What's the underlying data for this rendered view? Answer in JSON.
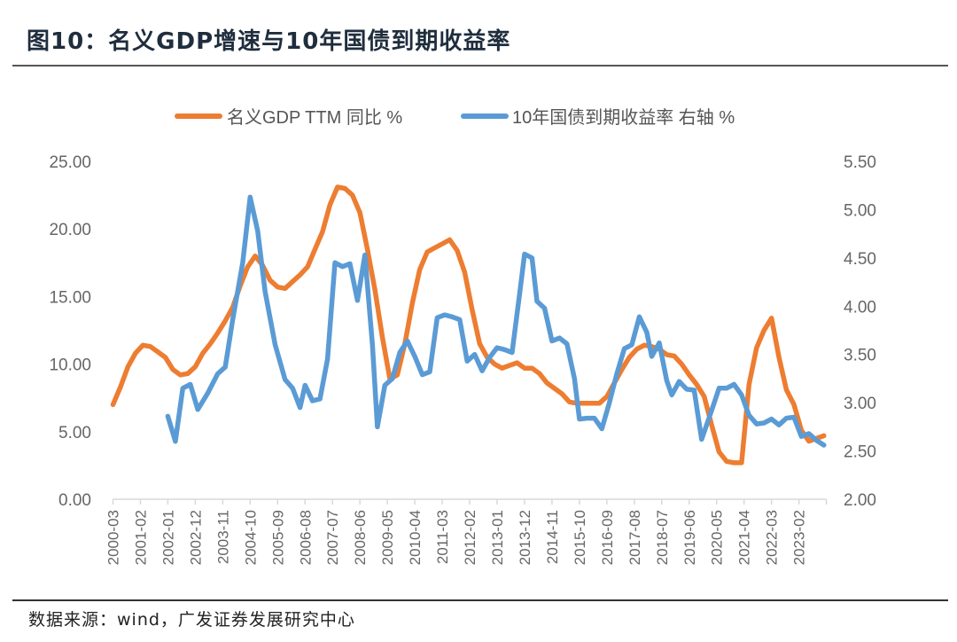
{
  "header": {
    "title": "图10：名义GDP增速与10年国债到期收益率"
  },
  "footer": {
    "source": "数据来源：wind，广发证券发展研究中心"
  },
  "chart_data": {
    "type": "line",
    "title": "名义GDP增速与10年国债到期收益率",
    "xlabel": "",
    "ylabel_left": "",
    "ylabel_right": "",
    "x_tick_labels": [
      "2000-03",
      "2001-02",
      "2002-01",
      "2002-12",
      "2003-11",
      "2004-10",
      "2005-09",
      "2006-08",
      "2007-07",
      "2008-06",
      "2009-05",
      "2010-04",
      "2011-03",
      "2012-02",
      "2013-01",
      "2013-12",
      "2014-11",
      "2015-10",
      "2016-09",
      "2017-08",
      "2018-07",
      "2019-06",
      "2020-05",
      "2021-04",
      "2022-03",
      "2023-02"
    ],
    "x_start": "2000-03",
    "x_end": "2024-01",
    "y_left": {
      "ticks": [
        "0.00",
        "5.00",
        "10.00",
        "15.00",
        "20.00",
        "25.00"
      ],
      "range": [
        0,
        25
      ]
    },
    "y_right": {
      "ticks": [
        "2.00",
        "2.50",
        "3.00",
        "3.50",
        "4.00",
        "4.50",
        "5.00",
        "5.50"
      ],
      "range": [
        2.0,
        5.5
      ]
    },
    "grid": false,
    "legend_position": "top",
    "series": [
      {
        "name": "名义GDP TTM 同比 %",
        "axis": "left",
        "color": "#ED7D31",
        "points": [
          [
            "2000-03",
            7.0
          ],
          [
            "2000-06",
            8.3
          ],
          [
            "2000-09",
            9.8
          ],
          [
            "2000-12",
            10.8
          ],
          [
            "2001-03",
            11.4
          ],
          [
            "2001-06",
            11.3
          ],
          [
            "2001-09",
            10.9
          ],
          [
            "2001-12",
            10.5
          ],
          [
            "2002-03",
            9.6
          ],
          [
            "2002-06",
            9.2
          ],
          [
            "2002-09",
            9.3
          ],
          [
            "2002-12",
            9.8
          ],
          [
            "2003-03",
            10.8
          ],
          [
            "2003-06",
            11.5
          ],
          [
            "2003-09",
            12.3
          ],
          [
            "2003-12",
            13.2
          ],
          [
            "2004-03",
            14.2
          ],
          [
            "2004-06",
            15.8
          ],
          [
            "2004-09",
            17.2
          ],
          [
            "2004-12",
            18.0
          ],
          [
            "2005-03",
            17.3
          ],
          [
            "2005-06",
            16.2
          ],
          [
            "2005-09",
            15.7
          ],
          [
            "2005-12",
            15.6
          ],
          [
            "2006-03",
            16.1
          ],
          [
            "2006-06",
            16.6
          ],
          [
            "2006-09",
            17.2
          ],
          [
            "2006-12",
            18.5
          ],
          [
            "2007-03",
            19.8
          ],
          [
            "2007-06",
            21.8
          ],
          [
            "2007-09",
            23.1
          ],
          [
            "2007-12",
            23.0
          ],
          [
            "2008-03",
            22.5
          ],
          [
            "2008-06",
            21.2
          ],
          [
            "2008-09",
            18.5
          ],
          [
            "2008-12",
            15.5
          ],
          [
            "2009-03",
            12.0
          ],
          [
            "2009-06",
            8.9
          ],
          [
            "2009-09",
            9.2
          ],
          [
            "2009-12",
            11.5
          ],
          [
            "2010-03",
            14.5
          ],
          [
            "2010-06",
            17.0
          ],
          [
            "2010-09",
            18.3
          ],
          [
            "2010-12",
            18.6
          ],
          [
            "2011-03",
            18.9
          ],
          [
            "2011-06",
            19.2
          ],
          [
            "2011-09",
            18.4
          ],
          [
            "2011-12",
            16.8
          ],
          [
            "2012-03",
            14.0
          ],
          [
            "2012-06",
            11.5
          ],
          [
            "2012-09",
            10.5
          ],
          [
            "2012-12",
            10.0
          ],
          [
            "2013-03",
            9.7
          ],
          [
            "2013-06",
            9.9
          ],
          [
            "2013-09",
            10.1
          ],
          [
            "2013-12",
            9.7
          ],
          [
            "2014-03",
            9.7
          ],
          [
            "2014-06",
            9.3
          ],
          [
            "2014-09",
            8.6
          ],
          [
            "2014-12",
            8.2
          ],
          [
            "2015-03",
            7.8
          ],
          [
            "2015-06",
            7.2
          ],
          [
            "2015-09",
            7.1
          ],
          [
            "2015-12",
            7.1
          ],
          [
            "2016-03",
            7.1
          ],
          [
            "2016-06",
            7.1
          ],
          [
            "2016-09",
            7.6
          ],
          [
            "2016-12",
            8.6
          ],
          [
            "2017-03",
            9.6
          ],
          [
            "2017-06",
            10.5
          ],
          [
            "2017-09",
            11.1
          ],
          [
            "2017-12",
            11.4
          ],
          [
            "2018-03",
            11.3
          ],
          [
            "2018-06",
            11.1
          ],
          [
            "2018-09",
            10.7
          ],
          [
            "2018-12",
            10.6
          ],
          [
            "2019-03",
            10.0
          ],
          [
            "2019-06",
            9.2
          ],
          [
            "2019-09",
            8.5
          ],
          [
            "2019-12",
            7.6
          ],
          [
            "2020-03",
            5.5
          ],
          [
            "2020-06",
            3.5
          ],
          [
            "2020-09",
            2.8
          ],
          [
            "2020-12",
            2.7
          ],
          [
            "2021-03",
            2.7
          ],
          [
            "2021-06",
            8.5
          ],
          [
            "2021-09",
            11.2
          ],
          [
            "2021-12",
            12.5
          ],
          [
            "2022-03",
            13.4
          ],
          [
            "2022-06",
            10.5
          ],
          [
            "2022-09",
            8.1
          ],
          [
            "2022-12",
            7.0
          ],
          [
            "2023-03",
            5.1
          ],
          [
            "2023-06",
            4.3
          ],
          [
            "2023-09",
            4.5
          ],
          [
            "2023-12",
            4.7
          ]
        ]
      },
      {
        "name": "10年国债到期收益率 右轴 %",
        "axis": "right",
        "color": "#5B9BD5",
        "points": [
          [
            "2002-01",
            2.86
          ],
          [
            "2002-04",
            2.6
          ],
          [
            "2002-07",
            3.15
          ],
          [
            "2002-10",
            3.19
          ],
          [
            "2003-01",
            2.93
          ],
          [
            "2003-05",
            3.1
          ],
          [
            "2003-09",
            3.3
          ],
          [
            "2003-12",
            3.37
          ],
          [
            "2004-03",
            3.86
          ],
          [
            "2004-07",
            4.45
          ],
          [
            "2004-10",
            5.13
          ],
          [
            "2005-01",
            4.78
          ],
          [
            "2005-04",
            4.15
          ],
          [
            "2005-08",
            3.6
          ],
          [
            "2005-12",
            3.24
          ],
          [
            "2006-03",
            3.15
          ],
          [
            "2006-06",
            2.95
          ],
          [
            "2006-08",
            3.18
          ],
          [
            "2006-11",
            3.02
          ],
          [
            "2007-02",
            3.04
          ],
          [
            "2007-05",
            3.45
          ],
          [
            "2007-08",
            4.45
          ],
          [
            "2007-11",
            4.41
          ],
          [
            "2008-02",
            4.44
          ],
          [
            "2008-05",
            4.06
          ],
          [
            "2008-08",
            4.53
          ],
          [
            "2008-11",
            3.6
          ],
          [
            "2009-01",
            2.75
          ],
          [
            "2009-04",
            3.18
          ],
          [
            "2009-07",
            3.25
          ],
          [
            "2009-10",
            3.52
          ],
          [
            "2010-01",
            3.64
          ],
          [
            "2010-04",
            3.48
          ],
          [
            "2010-07",
            3.29
          ],
          [
            "2010-10",
            3.32
          ],
          [
            "2011-01",
            3.88
          ],
          [
            "2011-04",
            3.91
          ],
          [
            "2011-07",
            3.89
          ],
          [
            "2011-10",
            3.86
          ],
          [
            "2012-01",
            3.43
          ],
          [
            "2012-04",
            3.5
          ],
          [
            "2012-07",
            3.33
          ],
          [
            "2012-10",
            3.47
          ],
          [
            "2013-01",
            3.57
          ],
          [
            "2013-04",
            3.55
          ],
          [
            "2013-07",
            3.52
          ],
          [
            "2013-10",
            4.12
          ],
          [
            "2013-12",
            4.54
          ],
          [
            "2014-03",
            4.5
          ],
          [
            "2014-05",
            4.05
          ],
          [
            "2014-08",
            3.98
          ],
          [
            "2014-11",
            3.64
          ],
          [
            "2015-02",
            3.67
          ],
          [
            "2015-05",
            3.61
          ],
          [
            "2015-08",
            3.25
          ],
          [
            "2015-10",
            2.83
          ],
          [
            "2016-01",
            2.84
          ],
          [
            "2016-04",
            2.84
          ],
          [
            "2016-07",
            2.73
          ],
          [
            "2016-10",
            3.0
          ],
          [
            "2017-01",
            3.3
          ],
          [
            "2017-04",
            3.56
          ],
          [
            "2017-07",
            3.6
          ],
          [
            "2017-10",
            3.89
          ],
          [
            "2018-01",
            3.73
          ],
          [
            "2018-03",
            3.48
          ],
          [
            "2018-06",
            3.62
          ],
          [
            "2018-09",
            3.23
          ],
          [
            "2018-11",
            3.08
          ],
          [
            "2019-02",
            3.22
          ],
          [
            "2019-05",
            3.14
          ],
          [
            "2019-08",
            3.13
          ],
          [
            "2019-11",
            2.62
          ],
          [
            "2020-03",
            2.92
          ],
          [
            "2020-06",
            3.15
          ],
          [
            "2020-09",
            3.15
          ],
          [
            "2020-12",
            3.19
          ],
          [
            "2021-03",
            3.08
          ],
          [
            "2021-06",
            2.87
          ],
          [
            "2021-09",
            2.78
          ],
          [
            "2021-12",
            2.79
          ],
          [
            "2022-03",
            2.83
          ],
          [
            "2022-06",
            2.77
          ],
          [
            "2022-09",
            2.84
          ],
          [
            "2022-12",
            2.85
          ],
          [
            "2023-03",
            2.65
          ],
          [
            "2023-06",
            2.68
          ],
          [
            "2023-09",
            2.61
          ],
          [
            "2023-12",
            2.56
          ]
        ]
      }
    ]
  }
}
